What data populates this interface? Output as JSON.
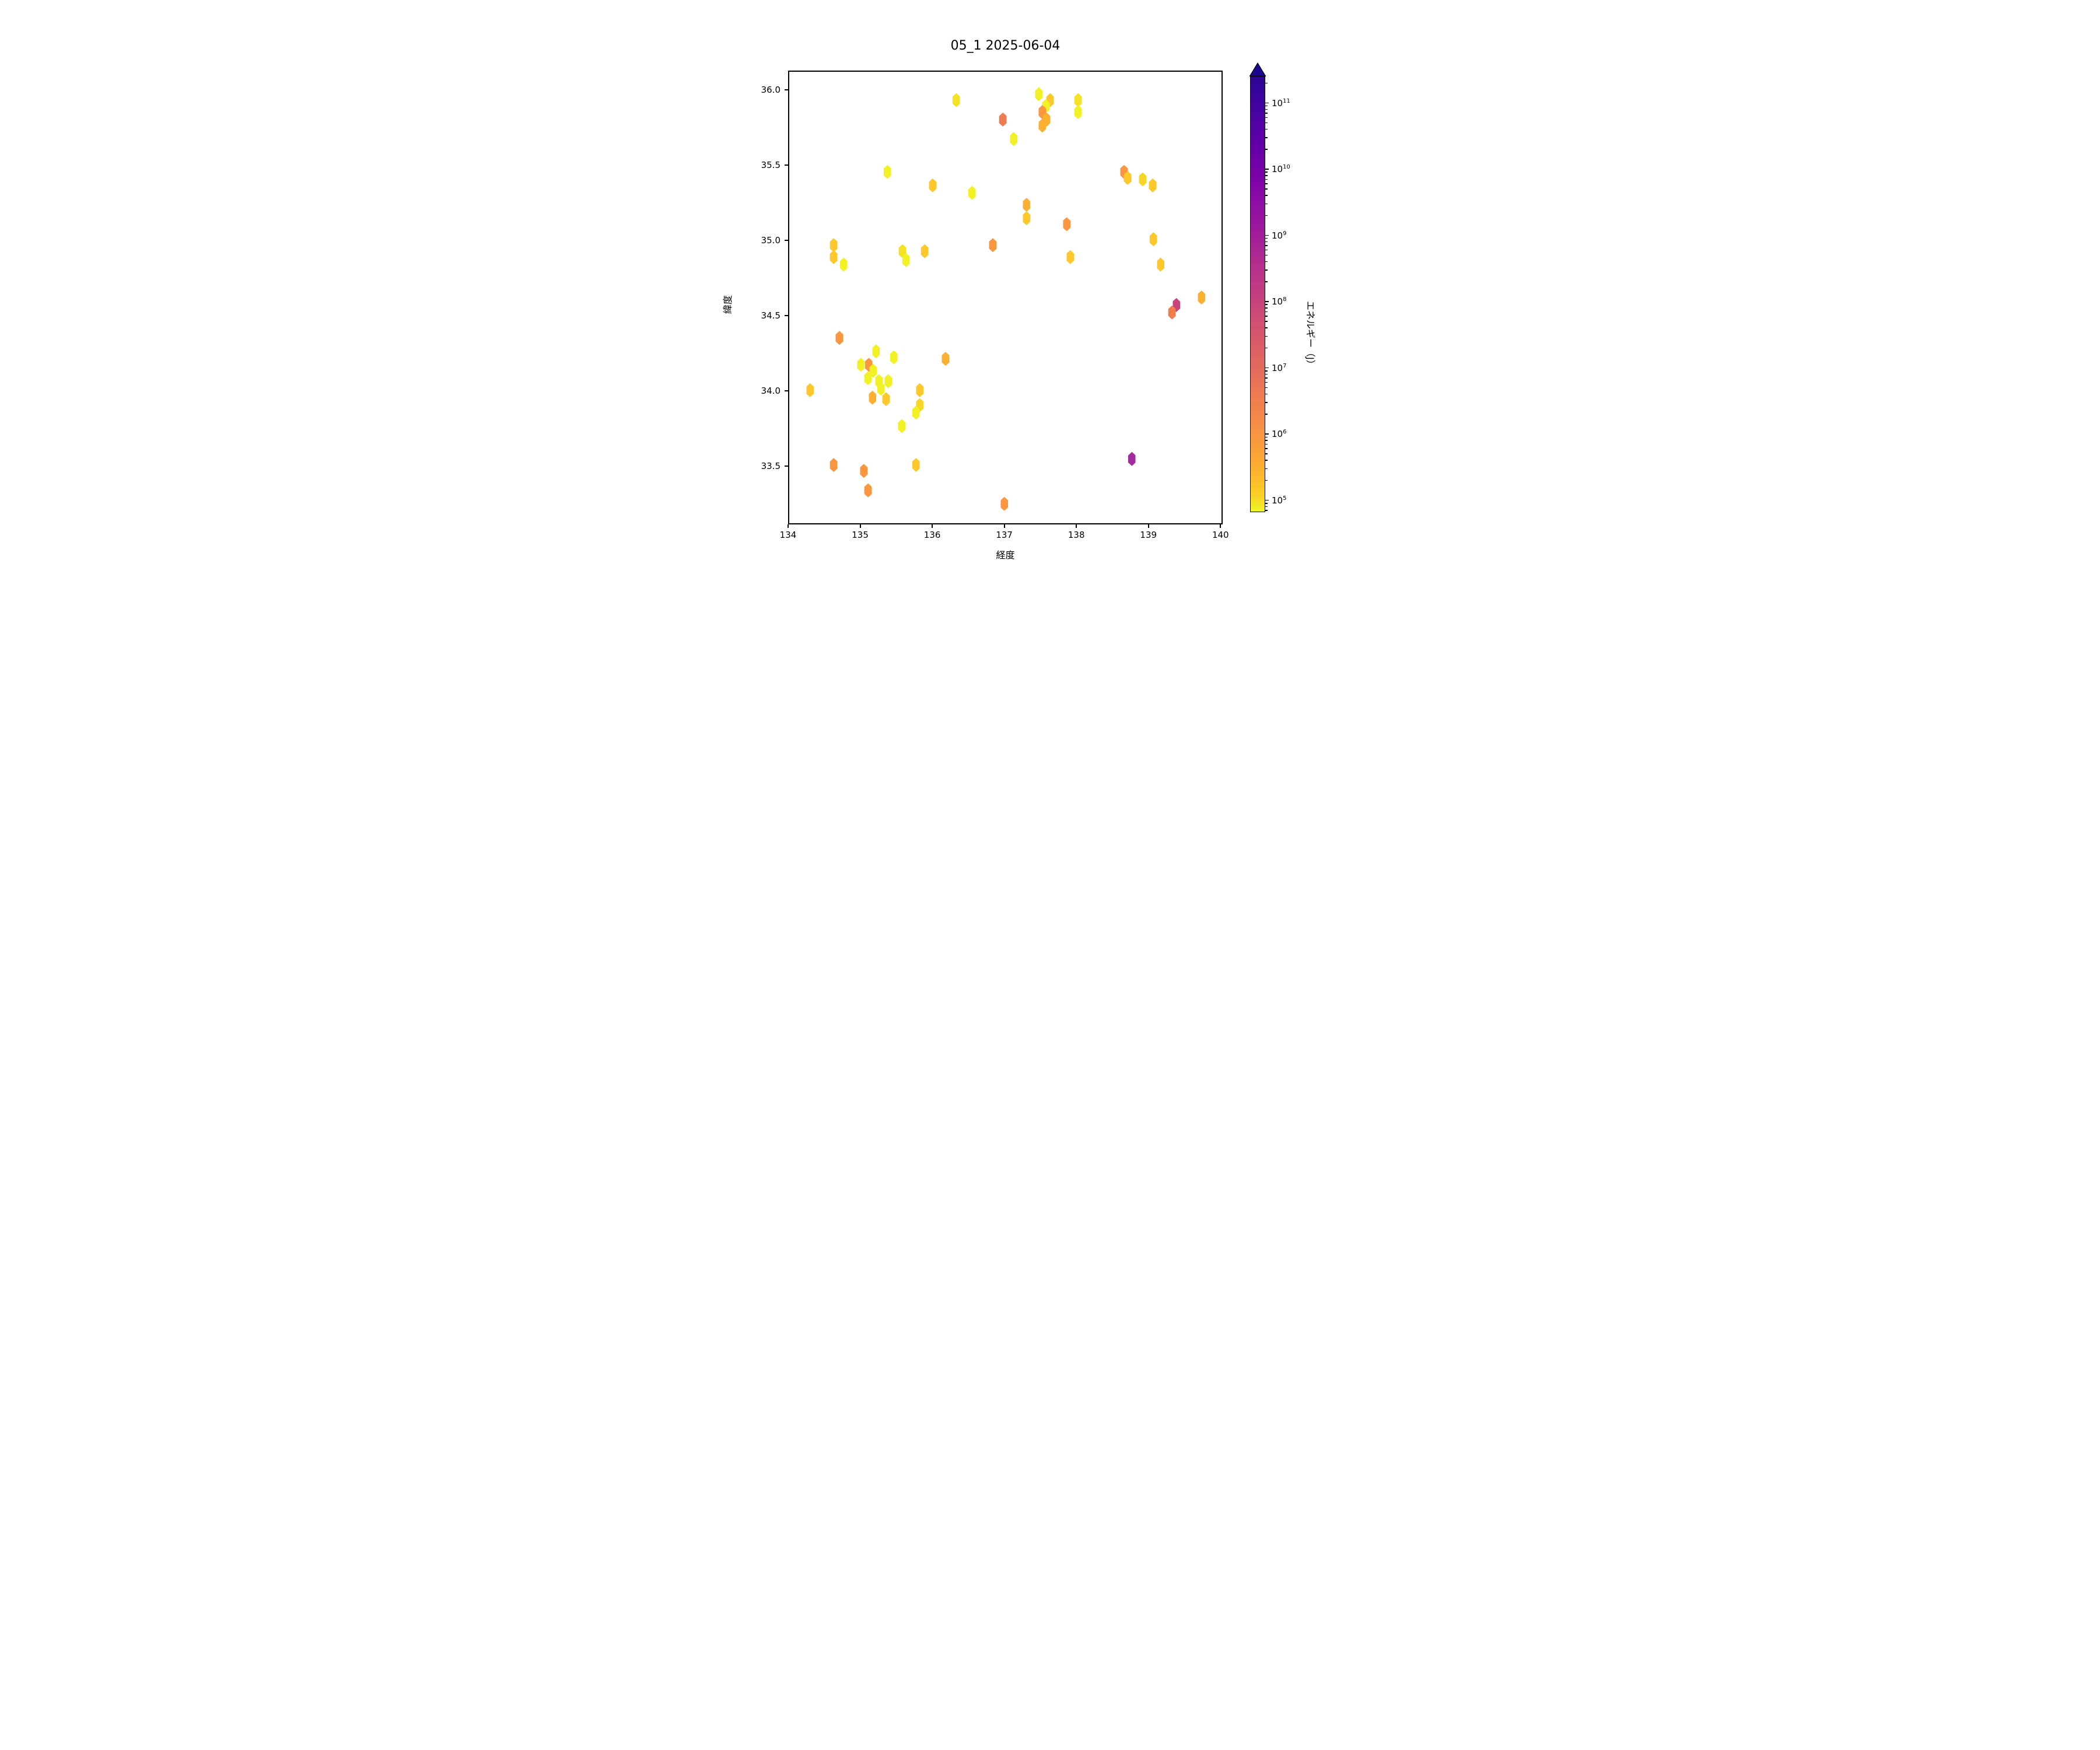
{
  "title": "05_1 2025-06-04",
  "axes": {
    "xlabel": "経度",
    "ylabel": "緯度",
    "xlim": [
      134,
      140.03
    ],
    "ylim": [
      33.11,
      36.13
    ],
    "xticks": [
      134,
      135,
      136,
      137,
      138,
      139,
      140
    ],
    "yticks": [
      33.5,
      34.0,
      34.5,
      35.0,
      35.5,
      36.0
    ]
  },
  "colorbar": {
    "label": "エネルギー（J）",
    "log_min": 4.82,
    "log_max": 11.41,
    "tick_exponents": [
      5,
      6,
      7,
      8,
      9,
      10,
      11
    ],
    "arrow_color": "#1c0690",
    "gradient_stops": [
      [
        "0%",
        "#2a0593"
      ],
      [
        "8%",
        "#4703a3"
      ],
      [
        "16%",
        "#6400a7"
      ],
      [
        "24%",
        "#7e03a8"
      ],
      [
        "32%",
        "#9613a1"
      ],
      [
        "40%",
        "#ab2694"
      ],
      [
        "48%",
        "#bf3984"
      ],
      [
        "56%",
        "#d04d73"
      ],
      [
        "64%",
        "#df6263"
      ],
      [
        "72%",
        "#ec7754"
      ],
      [
        "78%",
        "#f48849"
      ],
      [
        "84%",
        "#f99a3e"
      ],
      [
        "89%",
        "#fcac33"
      ],
      [
        "93%",
        "#fcbe2a"
      ],
      [
        "96.5%",
        "#f8d225"
      ],
      [
        "98.5%",
        "#f3e626"
      ],
      [
        "100%",
        "#f0f724"
      ]
    ]
  },
  "chart_data": {
    "type": "scatter",
    "marker": "hexagon",
    "title": "05_1 2025-06-04",
    "xlabel": "経度",
    "ylabel": "緯度",
    "xlim": [
      134,
      140.03
    ],
    "ylim": [
      33.11,
      36.13
    ],
    "colorbar_label": "エネルギー（J）",
    "colorbar_scale": "log",
    "colorbar_range_j": [
      66000.0,
      260000000000.0
    ],
    "color_scale": {
      "yellow": {
        "hex": "#f1f126",
        "energy_j": 120000.0
      },
      "yellow-gold": {
        "hex": "#f5e125",
        "energy_j": 300000.0
      },
      "gold-yellow": {
        "hex": "#f8d626",
        "energy_j": 500000.0
      },
      "gold": {
        "hex": "#fcc82b",
        "energy_j": 1100000.0
      },
      "gold-orange": {
        "hex": "#fbb032",
        "energy_j": 2800000.0
      },
      "orange": {
        "hex": "#f9963f",
        "energy_j": 8000000.0
      },
      "dark-orange": {
        "hex": "#ef7d50",
        "energy_j": 22000000.0
      },
      "crimson": {
        "hex": "#c8437c",
        "energy_j": 300000000.0
      },
      "purple": {
        "hex": "#a02b9c",
        "energy_j": 5000000000.0
      }
    },
    "points": [
      {
        "lon": 136.33,
        "lat": 35.94,
        "c": "yellow-gold"
      },
      {
        "lon": 137.48,
        "lat": 35.98,
        "c": "yellow"
      },
      {
        "lon": 137.64,
        "lat": 35.94,
        "c": "gold"
      },
      {
        "lon": 137.58,
        "lat": 35.9,
        "c": "yellow"
      },
      {
        "lon": 137.53,
        "lat": 35.86,
        "c": "orange"
      },
      {
        "lon": 137.59,
        "lat": 35.81,
        "c": "gold-orange"
      },
      {
        "lon": 137.53,
        "lat": 35.77,
        "c": "gold-orange"
      },
      {
        "lon": 136.98,
        "lat": 35.81,
        "c": "dark-orange"
      },
      {
        "lon": 137.13,
        "lat": 35.68,
        "c": "yellow"
      },
      {
        "lon": 138.03,
        "lat": 35.94,
        "c": "yellow-gold"
      },
      {
        "lon": 138.03,
        "lat": 35.86,
        "c": "yellow"
      },
      {
        "lon": 135.37,
        "lat": 35.46,
        "c": "yellow"
      },
      {
        "lon": 136.0,
        "lat": 35.37,
        "c": "gold"
      },
      {
        "lon": 136.55,
        "lat": 35.32,
        "c": "yellow"
      },
      {
        "lon": 138.67,
        "lat": 35.46,
        "c": "orange"
      },
      {
        "lon": 138.72,
        "lat": 35.42,
        "c": "gold"
      },
      {
        "lon": 138.93,
        "lat": 35.41,
        "c": "gold-yellow"
      },
      {
        "lon": 139.07,
        "lat": 35.37,
        "c": "gold"
      },
      {
        "lon": 139.08,
        "lat": 35.01,
        "c": "gold"
      },
      {
        "lon": 139.18,
        "lat": 34.84,
        "c": "gold"
      },
      {
        "lon": 137.31,
        "lat": 35.24,
        "c": "gold-orange"
      },
      {
        "lon": 137.31,
        "lat": 35.15,
        "c": "gold"
      },
      {
        "lon": 137.87,
        "lat": 35.11,
        "c": "orange"
      },
      {
        "lon": 137.92,
        "lat": 34.89,
        "c": "gold"
      },
      {
        "lon": 136.84,
        "lat": 34.97,
        "c": "orange"
      },
      {
        "lon": 134.62,
        "lat": 34.97,
        "c": "gold"
      },
      {
        "lon": 134.62,
        "lat": 34.89,
        "c": "gold"
      },
      {
        "lon": 134.76,
        "lat": 34.84,
        "c": "yellow"
      },
      {
        "lon": 135.58,
        "lat": 34.93,
        "c": "yellow-gold"
      },
      {
        "lon": 135.63,
        "lat": 34.87,
        "c": "yellow"
      },
      {
        "lon": 135.89,
        "lat": 34.93,
        "c": "gold"
      },
      {
        "lon": 139.4,
        "lat": 34.57,
        "c": "crimson"
      },
      {
        "lon": 139.34,
        "lat": 34.52,
        "c": "dark-orange"
      },
      {
        "lon": 139.75,
        "lat": 34.62,
        "c": "gold-orange"
      },
      {
        "lon": 134.7,
        "lat": 34.35,
        "c": "orange"
      },
      {
        "lon": 135.21,
        "lat": 34.26,
        "c": "yellow"
      },
      {
        "lon": 135.46,
        "lat": 34.22,
        "c": "yellow"
      },
      {
        "lon": 136.18,
        "lat": 34.21,
        "c": "gold-orange"
      },
      {
        "lon": 135.0,
        "lat": 34.17,
        "c": "yellow"
      },
      {
        "lon": 135.11,
        "lat": 34.17,
        "c": "orange"
      },
      {
        "lon": 135.17,
        "lat": 34.13,
        "c": "yellow"
      },
      {
        "lon": 135.1,
        "lat": 34.08,
        "c": "yellow"
      },
      {
        "lon": 135.25,
        "lat": 34.06,
        "c": "yellow"
      },
      {
        "lon": 135.38,
        "lat": 34.06,
        "c": "yellow"
      },
      {
        "lon": 135.28,
        "lat": 34.01,
        "c": "yellow"
      },
      {
        "lon": 135.82,
        "lat": 34.0,
        "c": "gold"
      },
      {
        "lon": 134.29,
        "lat": 34.0,
        "c": "gold"
      },
      {
        "lon": 135.16,
        "lat": 33.95,
        "c": "gold-orange"
      },
      {
        "lon": 135.35,
        "lat": 33.94,
        "c": "gold"
      },
      {
        "lon": 135.82,
        "lat": 33.9,
        "c": "gold-yellow"
      },
      {
        "lon": 135.77,
        "lat": 33.85,
        "c": "yellow"
      },
      {
        "lon": 135.57,
        "lat": 33.76,
        "c": "yellow"
      },
      {
        "lon": 134.62,
        "lat": 33.5,
        "c": "orange"
      },
      {
        "lon": 135.04,
        "lat": 33.46,
        "c": "orange"
      },
      {
        "lon": 135.77,
        "lat": 33.5,
        "c": "gold"
      },
      {
        "lon": 135.1,
        "lat": 33.33,
        "c": "orange"
      },
      {
        "lon": 137.0,
        "lat": 33.24,
        "c": "orange"
      },
      {
        "lon": 138.78,
        "lat": 33.54,
        "c": "purple"
      }
    ]
  }
}
